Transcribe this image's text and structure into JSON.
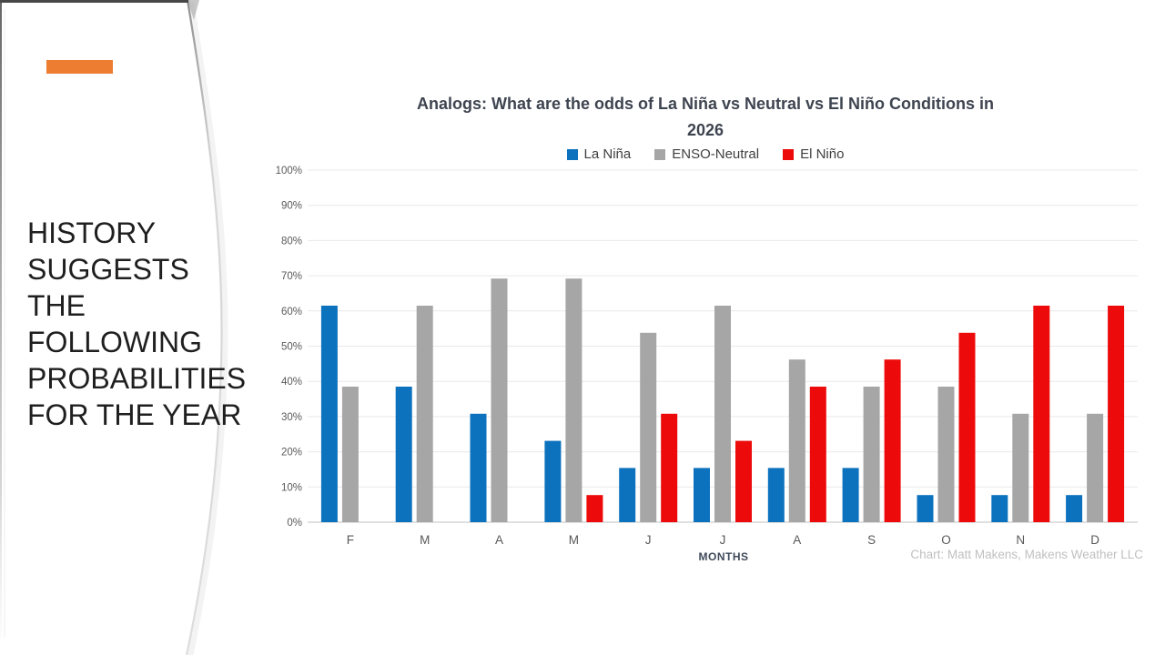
{
  "slide": {
    "accent_color": "#ED7D31",
    "heading_lines": [
      "HISTORY",
      "SUGGESTS",
      "THE",
      "FOLLOWING",
      "PROBABILITIES",
      "FOR THE YEAR"
    ]
  },
  "chart": {
    "title_lines": [
      "Analogs: What are the odds of La Niña vs Neutral vs El Niño Conditions in",
      "2026"
    ],
    "attribution": "Chart: Matt Makens, Makens Weather LLC"
  },
  "chart_data": {
    "type": "bar",
    "title": "Analogs: What are the odds of La Niña vs Neutral vs El Niño Conditions in 2026",
    "xlabel": "MONTHS",
    "ylabel": "",
    "categories": [
      "F",
      "M",
      "A",
      "M",
      "J",
      "J",
      "A",
      "S",
      "O",
      "N",
      "D"
    ],
    "series": [
      {
        "name": "La Niña",
        "color": "#0C72BE",
        "values": [
          61.5,
          38.5,
          30.8,
          23.1,
          15.4,
          15.4,
          15.4,
          15.4,
          7.7,
          7.7,
          7.7
        ]
      },
      {
        "name": "ENSO-Neutral",
        "color": "#A6A6A6",
        "values": [
          38.5,
          61.5,
          69.2,
          69.2,
          53.8,
          61.5,
          46.2,
          38.5,
          38.5,
          30.8,
          30.8
        ]
      },
      {
        "name": "El Niño",
        "color": "#EC0A0A",
        "values": [
          0,
          0,
          0,
          7.7,
          30.8,
          23.1,
          38.5,
          46.2,
          53.8,
          61.5,
          61.5
        ]
      }
    ],
    "ylim": [
      0,
      100
    ],
    "ytick_step": 10,
    "ytick_suffix": "%",
    "grid": true,
    "legend_position": "top"
  }
}
